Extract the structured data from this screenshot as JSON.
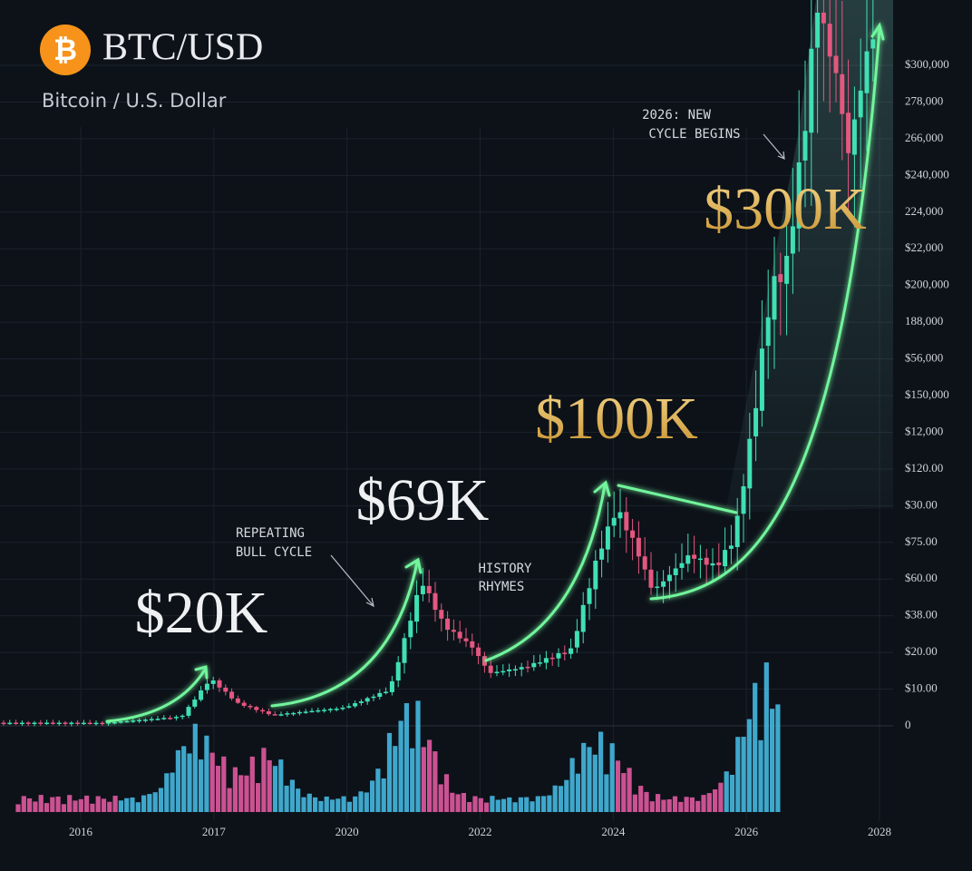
{
  "header": {
    "icon": "₿",
    "title": "BTC/USD",
    "subtitle": "Bitcoin / U.S. Dollar"
  },
  "y_axis_labels": [
    "$300,000",
    "278,000",
    "266,000",
    "$240,000",
    "224,000",
    "$22,000",
    "$200,000",
    "188,000",
    "$56,000",
    "$150,000",
    "$12,000",
    "$120.00",
    "$30.00",
    "$75.00",
    "$60.00",
    "$38.00",
    "$20.00",
    "$10.00",
    "0"
  ],
  "x_axis_labels": [
    "2016",
    "2017",
    "2020",
    "2022",
    "2024",
    "2026",
    "2028"
  ],
  "price_labels": [
    "$20K",
    "$69K",
    "$100K",
    "$300K"
  ],
  "annotations": [
    {
      "lines": [
        "REPEATING",
        "BULL CYCLE"
      ]
    },
    {
      "lines": [
        "HISTORY",
        "RHYMES"
      ]
    },
    {
      "lines": [
        "2026: NEW",
        "CYCLE BEGINS"
      ]
    }
  ]
}
